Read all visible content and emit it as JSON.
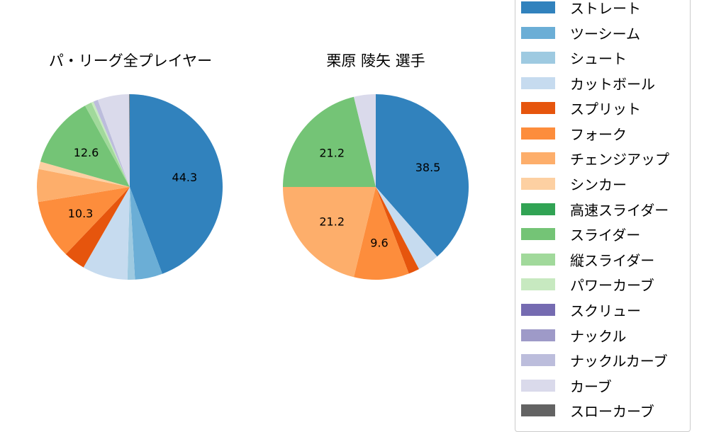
{
  "chart_data": [
    {
      "type": "pie",
      "title": "パ・リーグ全プレイヤー",
      "start_angle": 90,
      "direction": "clockwise",
      "label_threshold": 10,
      "categories": [
        "ストレート",
        "ツーシーム",
        "シュート",
        "カットボール",
        "スプリット",
        "フォーク",
        "チェンジアップ",
        "シンカー",
        "高速スライダー",
        "スライダー",
        "縦スライダー",
        "パワーカーブ",
        "スクリュー",
        "ナックル",
        "ナックルカーブ",
        "カーブ",
        "スローカーブ"
      ],
      "values": [
        44.3,
        4.8,
        1.3,
        7.9,
        3.8,
        10.3,
        5.7,
        1.3,
        0.0,
        12.6,
        1.2,
        0.4,
        0.0,
        0.0,
        0.8,
        5.5,
        0.1
      ],
      "shown_labels": [
        "44.3",
        "10.3",
        "12.6"
      ]
    },
    {
      "type": "pie",
      "title": "栗原 陵矢  選手",
      "start_angle": 90,
      "direction": "clockwise",
      "label_threshold": 5,
      "categories": [
        "ストレート",
        "ツーシーム",
        "シュート",
        "カットボール",
        "スプリット",
        "フォーク",
        "チェンジアップ",
        "シンカー",
        "高速スライダー",
        "スライダー",
        "縦スライダー",
        "パワーカーブ",
        "スクリュー",
        "ナックル",
        "ナックルカーブ",
        "カーブ",
        "スローカーブ"
      ],
      "values": [
        38.5,
        0.0,
        0.0,
        3.8,
        1.9,
        9.6,
        21.2,
        0.0,
        0.0,
        21.2,
        0.0,
        0.0,
        0.0,
        0.0,
        0.0,
        3.8,
        0.0
      ],
      "shown_labels": [
        "38.5",
        "9.6",
        "21.2",
        "21.2"
      ]
    }
  ],
  "titles": {
    "left": "パ・リーグ全プレイヤー",
    "right": "栗原 陵矢  選手"
  },
  "legend": {
    "items": [
      {
        "label": "ストレート",
        "color": "#3182bd"
      },
      {
        "label": "ツーシーム",
        "color": "#6baed6"
      },
      {
        "label": "シュート",
        "color": "#9ecae1"
      },
      {
        "label": "カットボール",
        "color": "#c6dbef"
      },
      {
        "label": "スプリット",
        "color": "#e6550d"
      },
      {
        "label": "フォーク",
        "color": "#fd8d3c"
      },
      {
        "label": "チェンジアップ",
        "color": "#fdae6b"
      },
      {
        "label": "シンカー",
        "color": "#fdd0a2"
      },
      {
        "label": "高速スライダー",
        "color": "#31a354"
      },
      {
        "label": "スライダー",
        "color": "#74c476"
      },
      {
        "label": "縦スライダー",
        "color": "#a1d99b"
      },
      {
        "label": "パワーカーブ",
        "color": "#c7e9c0"
      },
      {
        "label": "スクリュー",
        "color": "#756bb1"
      },
      {
        "label": "ナックル",
        "color": "#9e9ac8"
      },
      {
        "label": "ナックルカーブ",
        "color": "#bcbddc"
      },
      {
        "label": "カーブ",
        "color": "#dadaeb"
      },
      {
        "label": "スローカーブ",
        "color": "#636363"
      }
    ]
  }
}
